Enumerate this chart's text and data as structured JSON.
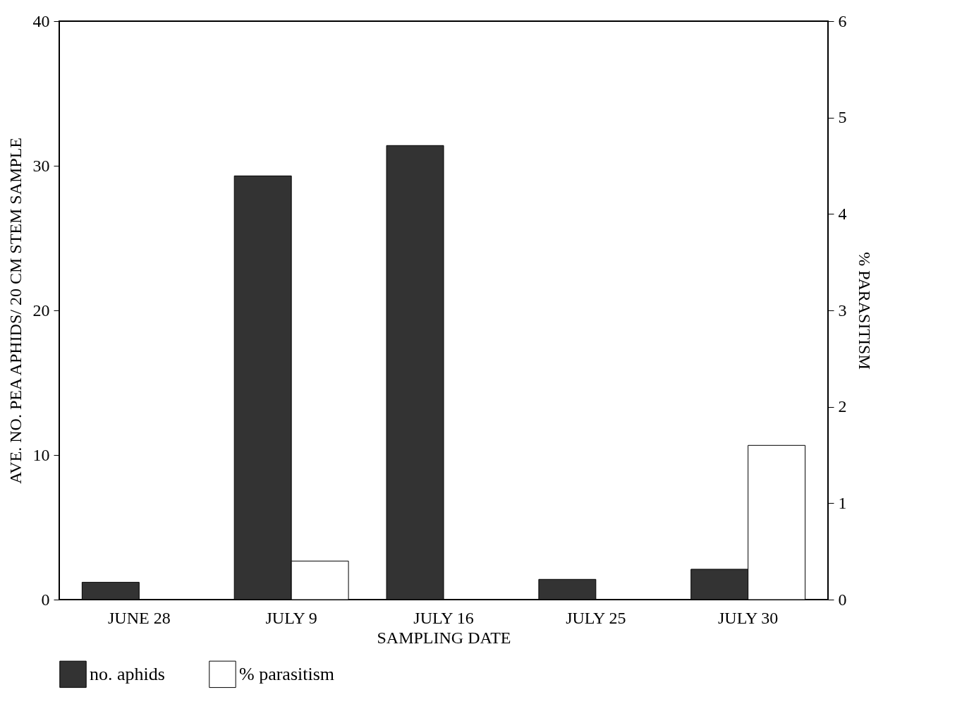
{
  "chart_data": {
    "type": "bar",
    "xlabel": "SAMPLING DATE",
    "ylabel": "AVE. NO. PEA APHIDS/ 20 CM STEM SAMPLE",
    "y2label": "% PARASITISM",
    "categories": [
      "JUNE 28",
      "JULY 9",
      "JULY 16",
      "JULY 25",
      "JULY 30"
    ],
    "series": [
      {
        "name": "no. aphids",
        "color": "#333333",
        "values": [
          1.2,
          29.3,
          31.4,
          1.4,
          2.1
        ]
      },
      {
        "name": "% parasitism",
        "color": "#ffffff",
        "axis": "y2",
        "values": [
          0,
          0.4,
          0,
          0,
          1.6
        ]
      }
    ],
    "ylim": [
      0,
      40
    ],
    "yticks": [
      0,
      10,
      20,
      30,
      40
    ],
    "y2lim": [
      0,
      6
    ],
    "y2ticks": [
      0,
      1,
      2,
      3,
      4,
      5,
      6
    ],
    "grid": false,
    "legend": "bottom"
  }
}
